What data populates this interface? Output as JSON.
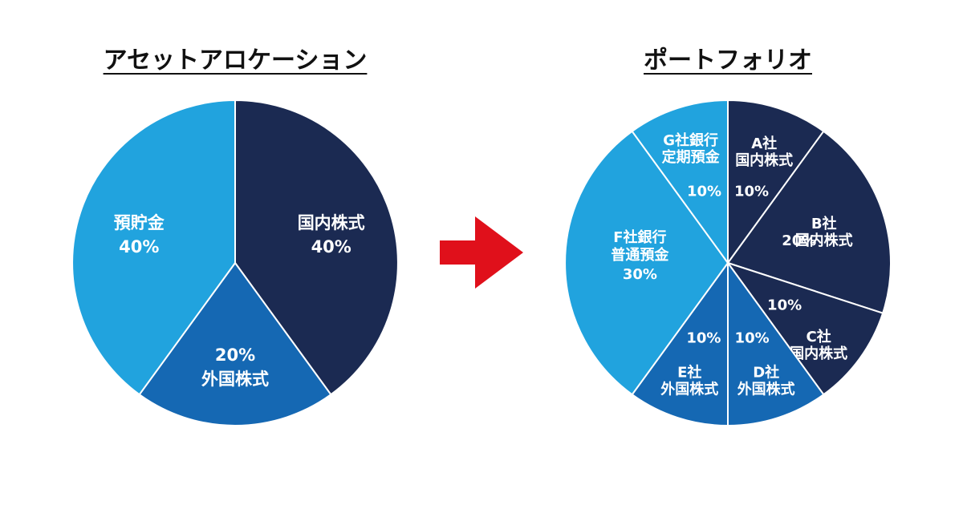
{
  "chart_data": [
    {
      "type": "pie",
      "title": "アセットアロケーション",
      "slices": [
        {
          "label": "国内株式",
          "value": 40,
          "value_label": "40%",
          "color": "#1b2a52"
        },
        {
          "label": "外国株式",
          "value": 20,
          "value_label": "20%",
          "color": "#1568b3"
        },
        {
          "label": "預貯金",
          "value": 40,
          "value_label": "40%",
          "color": "#21a3de"
        }
      ]
    },
    {
      "type": "pie",
      "title": "ポートフォリオ",
      "slices": [
        {
          "label": [
            "A社",
            "国内株式"
          ],
          "value": 10,
          "value_label": "10%",
          "color": "#1b2a52"
        },
        {
          "label": [
            "B社",
            "国内株式"
          ],
          "value": 20,
          "value_label": "20%",
          "color": "#1b2a52"
        },
        {
          "label": [
            "C社",
            "国内株式"
          ],
          "value": 10,
          "value_label": "10%",
          "color": "#1b2a52"
        },
        {
          "label": [
            "D社",
            "外国株式"
          ],
          "value": 10,
          "value_label": "10%",
          "color": "#1568b3"
        },
        {
          "label": [
            "E社",
            "外国株式"
          ],
          "value": 10,
          "value_label": "10%",
          "color": "#1568b3"
        },
        {
          "label": [
            "F社銀行",
            "普通預金"
          ],
          "value": 30,
          "value_label": "30%",
          "color": "#21a3de"
        },
        {
          "label": [
            "G社銀行",
            "定期預金"
          ],
          "value": 10,
          "value_label": "10%",
          "color": "#21a3de"
        }
      ]
    }
  ],
  "arrow": {
    "color": "#e0101b"
  }
}
